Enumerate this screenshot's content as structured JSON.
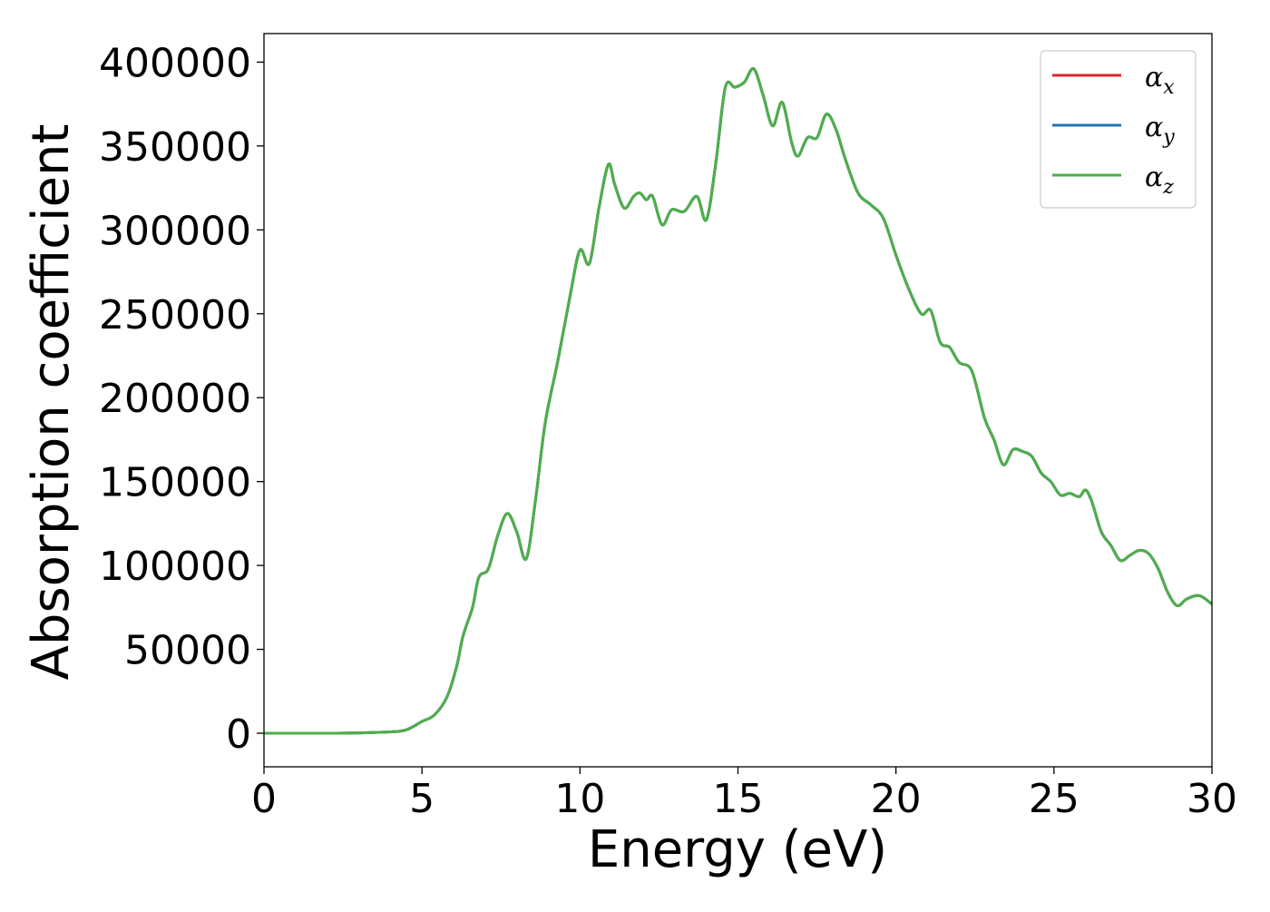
{
  "chart_data": {
    "type": "line",
    "title": "",
    "xlabel": "Energy (eV)",
    "ylabel": "Absorption coefficient",
    "xlim": [
      0,
      30
    ],
    "ylim": [
      -20000,
      417000
    ],
    "x_ticks": [
      "0",
      "5",
      "10",
      "15",
      "20",
      "25",
      "30"
    ],
    "y_ticks": [
      "0",
      "50000",
      "100000",
      "150000",
      "200000",
      "250000",
      "300000",
      "350000",
      "400000"
    ],
    "x_tick_values": [
      0,
      5,
      10,
      15,
      20,
      25,
      30
    ],
    "y_tick_values": [
      0,
      50000,
      100000,
      150000,
      200000,
      250000,
      300000,
      350000,
      400000
    ],
    "grid": false,
    "legend_position": "top-right",
    "series": [
      {
        "name": "α",
        "sub": "x",
        "color": "#d62728",
        "key": "alpha-x"
      },
      {
        "name": "α",
        "sub": "y",
        "color": "#1f77b4",
        "key": "alpha-y"
      },
      {
        "name": "α",
        "sub": "z",
        "color": "#4daf4a",
        "key": "alpha-z"
      }
    ],
    "x": [
      0,
      2,
      3,
      4,
      4.5,
      5,
      5.4,
      5.8,
      6.1,
      6.3,
      6.6,
      6.8,
      7.1,
      7.4,
      7.7,
      8.0,
      8.3,
      8.6,
      8.9,
      9.3,
      9.7,
      10.0,
      10.3,
      10.6,
      10.9,
      11.1,
      11.4,
      11.7,
      11.9,
      12.1,
      12.3,
      12.6,
      12.9,
      13.3,
      13.7,
      14.0,
      14.3,
      14.6,
      14.9,
      15.2,
      15.5,
      15.8,
      16.1,
      16.4,
      16.7,
      16.9,
      17.2,
      17.5,
      17.8,
      18.1,
      18.4,
      18.8,
      19.2,
      19.6,
      20.0,
      20.4,
      20.8,
      21.1,
      21.4,
      21.7,
      22.0,
      22.4,
      22.8,
      23.1,
      23.4,
      23.7,
      24.0,
      24.3,
      24.6,
      24.9,
      25.2,
      25.5,
      25.8,
      26.0,
      26.2,
      26.5,
      26.8,
      27.1,
      27.4,
      27.7,
      28.0,
      28.3,
      28.6,
      28.9,
      29.2,
      29.6,
      30.0
    ],
    "y": [
      0,
      0,
      200,
      800,
      2000,
      7000,
      11000,
      22000,
      40000,
      58000,
      75000,
      93000,
      98000,
      118000,
      131000,
      120000,
      104000,
      140000,
      185000,
      222000,
      262000,
      288000,
      280000,
      313000,
      339000,
      327000,
      313000,
      320000,
      322000,
      318000,
      320000,
      303000,
      312000,
      311000,
      320000,
      306000,
      340000,
      385000,
      385000,
      388000,
      396000,
      380000,
      362000,
      376000,
      352000,
      344000,
      355000,
      355000,
      369000,
      360000,
      342000,
      322000,
      315000,
      307000,
      285000,
      265000,
      250000,
      252000,
      233000,
      230000,
      221000,
      216000,
      188000,
      175000,
      160000,
      169000,
      168000,
      165000,
      155000,
      150000,
      142000,
      143000,
      141000,
      145000,
      138000,
      120000,
      112000,
      103000,
      106000,
      109000,
      107000,
      98000,
      84000,
      76000,
      80000,
      82000,
      77000
    ]
  }
}
